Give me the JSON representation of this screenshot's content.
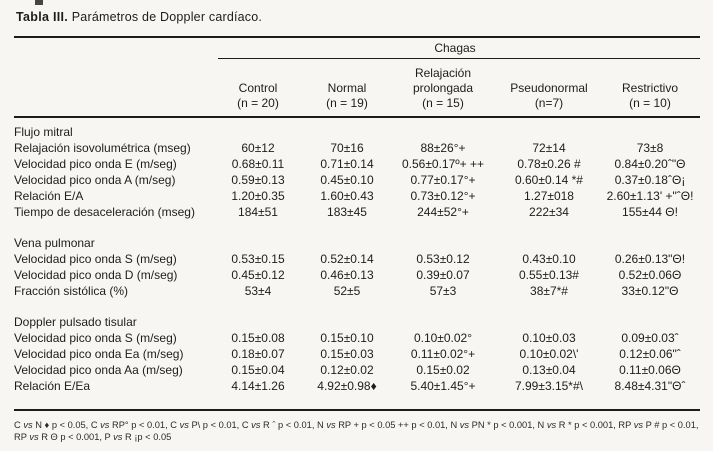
{
  "title": {
    "label": "Tabla III.",
    "caption": " Parámetros de Doppler cardíaco."
  },
  "table": {
    "group_header": "Chagas",
    "columns": [
      {
        "lines": [
          "Control",
          "(n = 20)"
        ]
      },
      {
        "lines": [
          "Normal",
          "(n = 19)"
        ]
      },
      {
        "lines": [
          "Relajación",
          "prolongada",
          "(n = 15)"
        ]
      },
      {
        "lines": [
          "Pseudonormal",
          "(n=7)"
        ]
      },
      {
        "lines": [
          "Restrictivo",
          "(n = 10)"
        ]
      }
    ],
    "sections": [
      {
        "header": "Flujo mitral",
        "rows": [
          {
            "label": "Relajación isovolumétrica (mseg)",
            "values": [
              "60±12",
              "70±16",
              "88±26°+",
              "72±14",
              "73±8"
            ]
          },
          {
            "label": "Velocidad pico onda E (m/seg)",
            "values": [
              "0.68±0.11",
              "0.71±0.14",
              "0.56±0.17º+ ++",
              "0.78±0.26 #",
              "0.84±0.20ˆ\"Θ"
            ]
          },
          {
            "label": "Velocidad pico onda A (m/seg)",
            "values": [
              "0.59±0.13",
              "0.45±0.10",
              "0.77±0.17°+",
              "0.60±0.14 *#",
              "0.37±0.18ˆΘ¡"
            ]
          },
          {
            "label": "Relación E/A",
            "values": [
              "1.20±0.35",
              "1.60±0.43",
              "0.73±0.12°+",
              "1.27±018",
              "2.60±1.13' +\"ˆΘ!"
            ]
          },
          {
            "label": "Tiempo de desaceleración (mseg)",
            "values": [
              "184±51",
              "183±45",
              "244±52°+",
              "222±34",
              "155±44 Θ!"
            ]
          }
        ]
      },
      {
        "header": "Vena pulmonar",
        "rows": [
          {
            "label": "Velocidad pico onda S (m/seg)",
            "values": [
              "0.53±0.15",
              "0.52±0.14",
              "0.53±0.12",
              "0.43±0.10",
              "0.26±0.13\"Θ!"
            ]
          },
          {
            "label": "Velocidad pico onda D (m/seg)",
            "values": [
              "0.45±0.12",
              "0.46±0.13",
              "0.39±0.07",
              "0.55±0.13#",
              "0.52±0.06Θ"
            ]
          },
          {
            "label": "Fracción sistólica (%)",
            "values": [
              "53±4",
              "52±5",
              "57±3",
              "38±7*#",
              "33±0.12\"Θ"
            ]
          }
        ]
      },
      {
        "header": "Doppler pulsado tisular",
        "rows": [
          {
            "label": "Velocidad pico onda S (m/seg)",
            "values": [
              "0.15±0.08",
              "0.15±0.10",
              "0.10±0.02°",
              "0.10±0.03",
              "0.09±0.03ˆ"
            ]
          },
          {
            "label": "Velocidad pico onda Ea (m/seg)",
            "values": [
              "0.18±0.07",
              "0.15±0.03",
              "0.11±0.02°+",
              "0.10±0.02\\'",
              "0.12±0.06\"ˆ"
            ]
          },
          {
            "label": "Velocidad pico onda Aa (m/seg)",
            "values": [
              "0.15±0.04",
              "0.12±0.02",
              "0.15±0.02",
              "0.13±0.04",
              "0.11±0.06Θ"
            ]
          },
          {
            "label": "Relación E/Ea",
            "values": [
              "4.14±1.26",
              "4.92±0.98♦",
              "5.40±1.45°+",
              "7.99±3.15*#\\",
              "8.48±4.31\"Θˆ"
            ]
          }
        ]
      }
    ]
  },
  "footnote": "C |vs| N ♦ p < 0.05, C |vs| RP° p < 0.01, C |vs| P\\ p < 0.01, C |vs| R ˆ p < 0.01, N |vs| RP + p < 0.05 ++ p < 0.01, N |vs| PN * p < 0.001, N |vs| R * p < 0.001, RP |vs| P # p < 0.01, RP |vs| R Θ p < 0.001, P |vs| R ¡p < 0.05"
}
